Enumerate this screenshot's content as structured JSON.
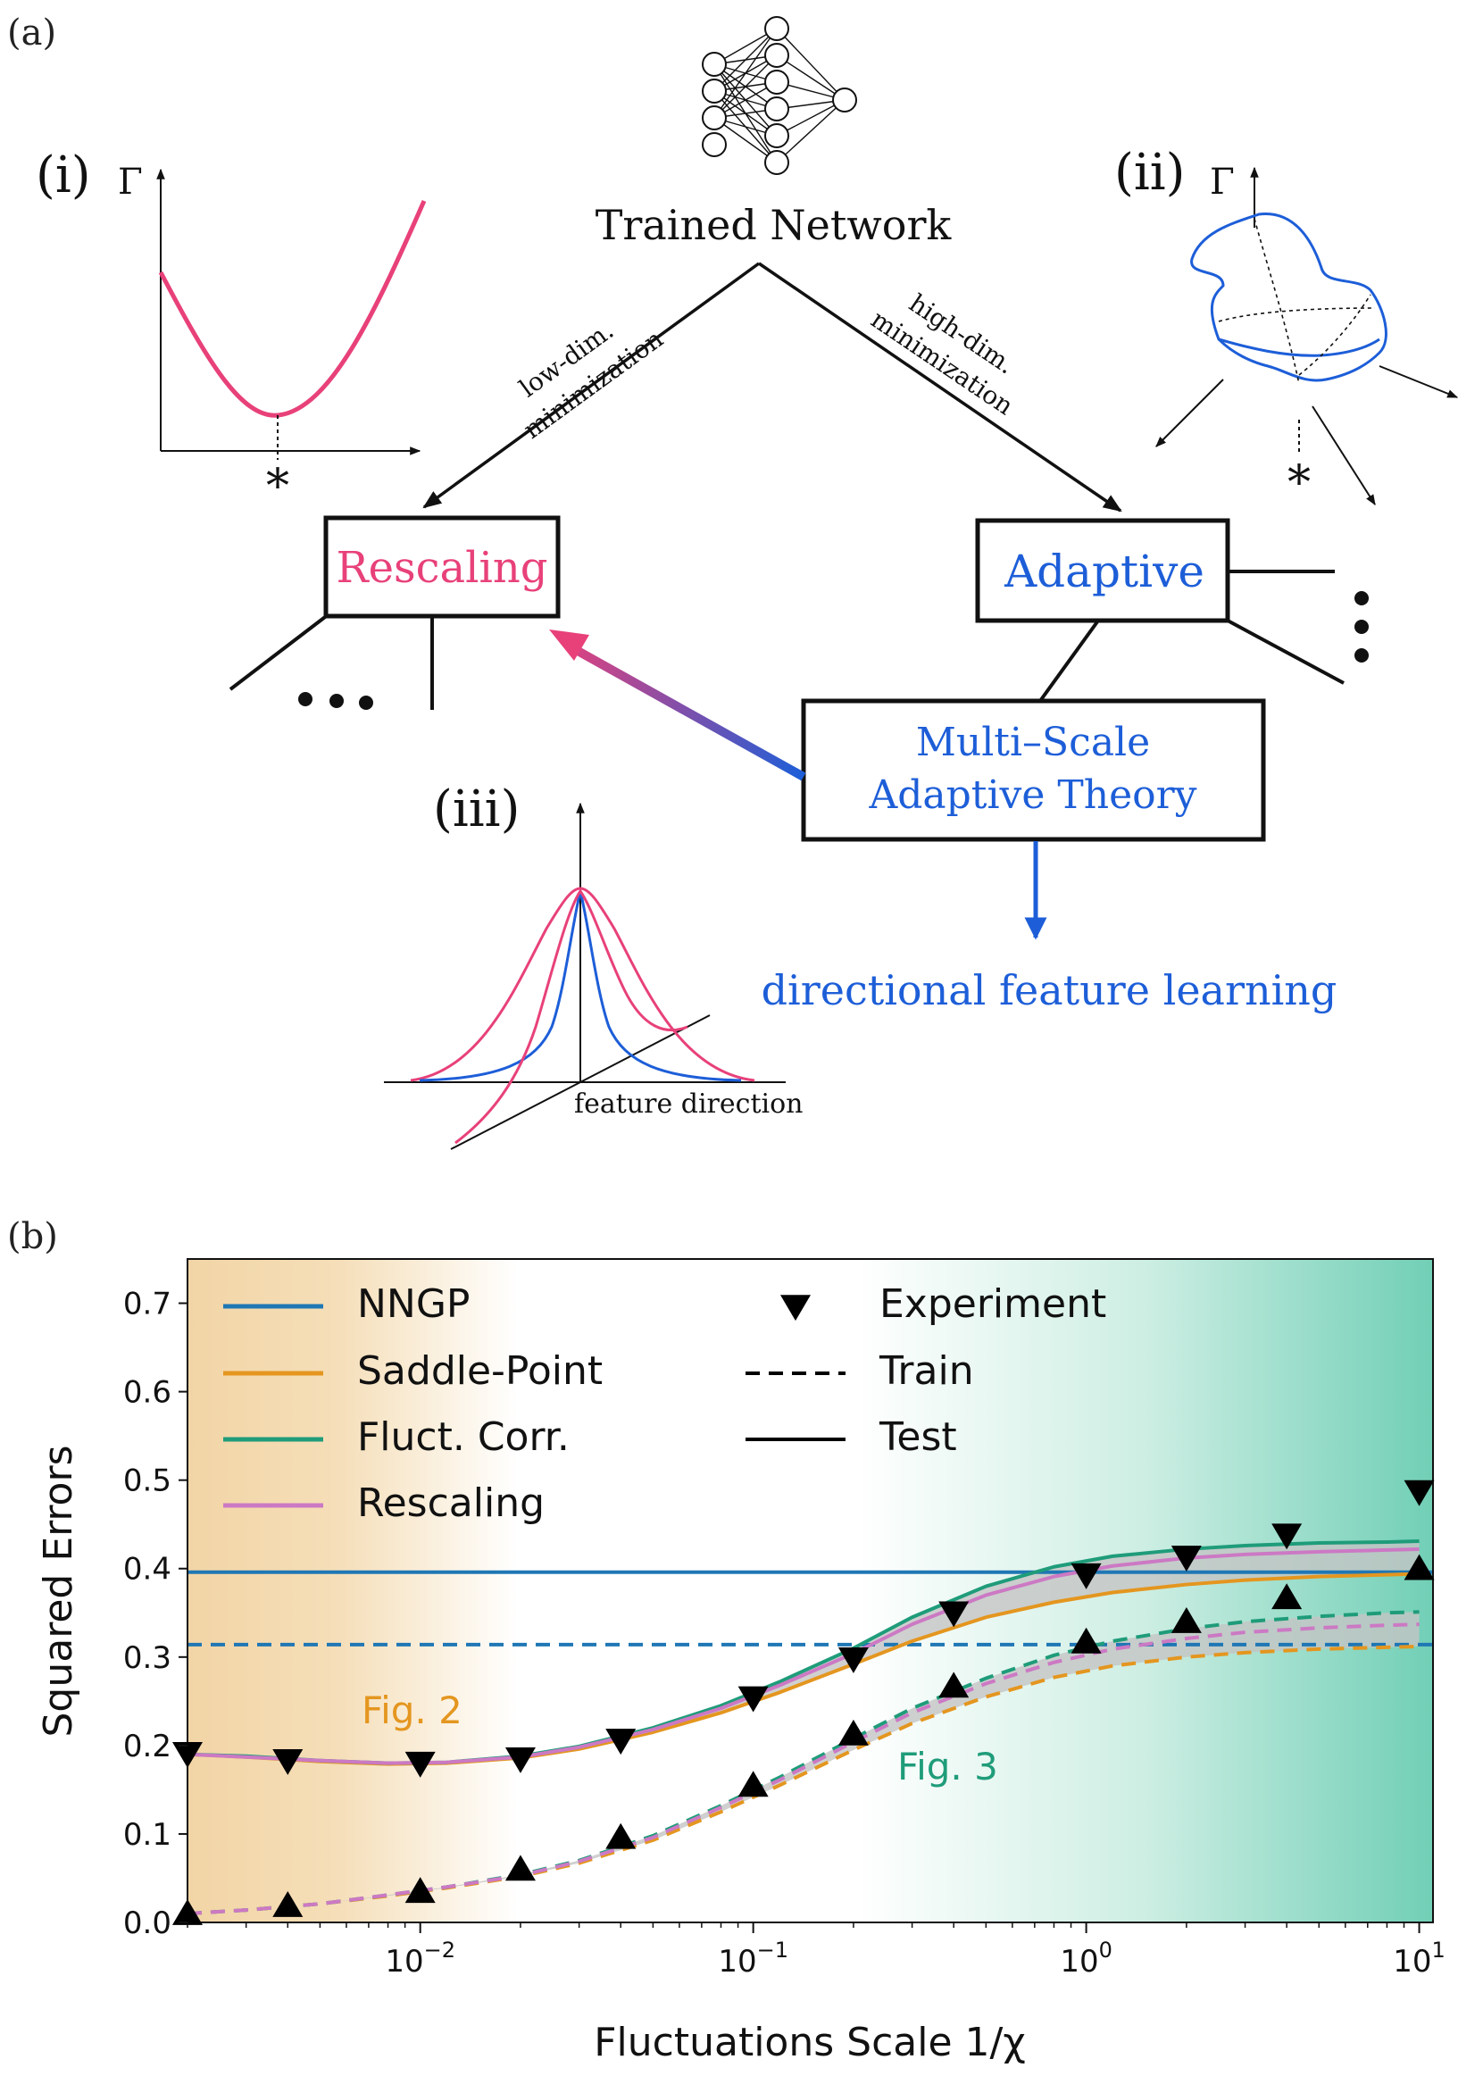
{
  "panel_a": {
    "label": "(a)",
    "root": "Trained Network",
    "branch_left": [
      "low-dim.",
      "minimization"
    ],
    "branch_right": [
      "high-dim.",
      "minimization"
    ],
    "box_rescaling": "Rescaling",
    "box_adaptive": "Adaptive",
    "box_msat": [
      "Multi–Scale",
      "Adaptive Theory"
    ],
    "dfl": "directional feature learning",
    "inset_i": {
      "label": "(i)",
      "axis": "Γ",
      "min_mark": "*"
    },
    "inset_ii": {
      "label": "(ii)",
      "axis": "Γ",
      "min_mark": "*"
    },
    "inset_iii": {
      "label": "(iii)",
      "axis_text": "feature direction"
    },
    "colors": {
      "rescaling": "#e8417a",
      "adaptive": "#1d5ed8",
      "black": "#111111"
    }
  },
  "panel_b": {
    "label": "(b)",
    "annotations": [
      {
        "text": "Fig. 2",
        "color": "#e4961f"
      },
      {
        "text": "Fig. 3",
        "color": "#1f9c7a"
      }
    ]
  },
  "chart_data": {
    "type": "line",
    "xlabel": "Fluctuations Scale 1/χ",
    "ylabel": "Squared Errors",
    "xscale": "log",
    "xlim": [
      0.002,
      11
    ],
    "ylim": [
      0.0,
      0.75
    ],
    "xticks": [
      {
        "value": 0.01,
        "label": "10",
        "exp": "−2"
      },
      {
        "value": 0.1,
        "label": "10",
        "exp": "−1"
      },
      {
        "value": 1,
        "label": "10",
        "exp": "0"
      },
      {
        "value": 10,
        "label": "10",
        "exp": "1"
      }
    ],
    "yticks": [
      "0.0",
      "0.1",
      "0.2",
      "0.3",
      "0.4",
      "0.5",
      "0.6",
      "0.7"
    ],
    "background": {
      "left_color": "#f2d5a6",
      "right_color": "#71cfb6"
    },
    "legend": {
      "placement": "top-left",
      "entries": [
        {
          "label": "NNGP",
          "color": "#1f77b4",
          "kind": "line"
        },
        {
          "label": "Saddle-Point",
          "color": "#e4961f",
          "kind": "line"
        },
        {
          "label": "Fluct. Corr.",
          "color": "#1f9c7a",
          "kind": "line"
        },
        {
          "label": "Rescaling",
          "color": "#cc79c4",
          "kind": "line"
        },
        {
          "label": "Experiment",
          "color": "#000000",
          "kind": "triangle-down"
        },
        {
          "label": "Train",
          "color": "#000000",
          "kind": "dashed"
        },
        {
          "label": "Test",
          "color": "#000000",
          "kind": "solid"
        }
      ]
    },
    "nngp": {
      "test": 0.396,
      "train": 0.314
    },
    "x": [
      0.002,
      0.003,
      0.005,
      0.008,
      0.012,
      0.02,
      0.03,
      0.05,
      0.08,
      0.12,
      0.2,
      0.3,
      0.5,
      0.8,
      1.2,
      2,
      3,
      5,
      8,
      10
    ],
    "series": [
      {
        "name": "Saddle-Point",
        "split": "Test",
        "values": [
          0.19,
          0.187,
          0.182,
          0.179,
          0.18,
          0.186,
          0.196,
          0.215,
          0.237,
          0.26,
          0.292,
          0.318,
          0.345,
          0.362,
          0.373,
          0.382,
          0.387,
          0.391,
          0.393,
          0.394
        ]
      },
      {
        "name": "Fluct. Corr.",
        "split": "Test",
        "values": [
          0.19,
          0.188,
          0.183,
          0.18,
          0.181,
          0.188,
          0.199,
          0.22,
          0.245,
          0.272,
          0.31,
          0.345,
          0.38,
          0.402,
          0.414,
          0.422,
          0.426,
          0.429,
          0.43,
          0.431
        ]
      },
      {
        "name": "Rescaling",
        "split": "Test",
        "values": [
          0.19,
          0.187,
          0.183,
          0.18,
          0.181,
          0.187,
          0.198,
          0.218,
          0.242,
          0.268,
          0.304,
          0.337,
          0.37,
          0.391,
          0.403,
          0.412,
          0.416,
          0.419,
          0.421,
          0.422
        ]
      },
      {
        "name": "Saddle-Point",
        "split": "Train",
        "values": [
          0.01,
          0.014,
          0.021,
          0.03,
          0.039,
          0.052,
          0.067,
          0.093,
          0.125,
          0.155,
          0.195,
          0.225,
          0.255,
          0.277,
          0.29,
          0.3,
          0.305,
          0.309,
          0.311,
          0.312
        ]
      },
      {
        "name": "Fluct. Corr.",
        "split": "Train",
        "values": [
          0.01,
          0.014,
          0.021,
          0.031,
          0.04,
          0.054,
          0.07,
          0.098,
          0.132,
          0.164,
          0.208,
          0.242,
          0.276,
          0.302,
          0.318,
          0.332,
          0.34,
          0.346,
          0.35,
          0.351
        ]
      },
      {
        "name": "Rescaling",
        "split": "Train",
        "values": [
          0.01,
          0.014,
          0.021,
          0.031,
          0.04,
          0.053,
          0.069,
          0.096,
          0.13,
          0.161,
          0.204,
          0.237,
          0.27,
          0.294,
          0.309,
          0.321,
          0.328,
          0.333,
          0.336,
          0.337
        ]
      }
    ],
    "experiment_test": {
      "x": [
        0.002,
        0.004,
        0.01,
        0.02,
        0.04,
        0.1,
        0.2,
        0.4,
        1,
        2,
        4,
        10
      ],
      "y": [
        0.191,
        0.183,
        0.18,
        0.185,
        0.206,
        0.254,
        0.298,
        0.35,
        0.393,
        0.413,
        0.438,
        0.487
      ]
    },
    "experiment_train": {
      "x": [
        0.002,
        0.004,
        0.01,
        0.02,
        0.04,
        0.1,
        0.2,
        0.4,
        1,
        2,
        4,
        10
      ],
      "y": [
        0.01,
        0.019,
        0.035,
        0.06,
        0.096,
        0.155,
        0.213,
        0.267,
        0.317,
        0.34,
        0.367,
        0.4
      ]
    }
  }
}
